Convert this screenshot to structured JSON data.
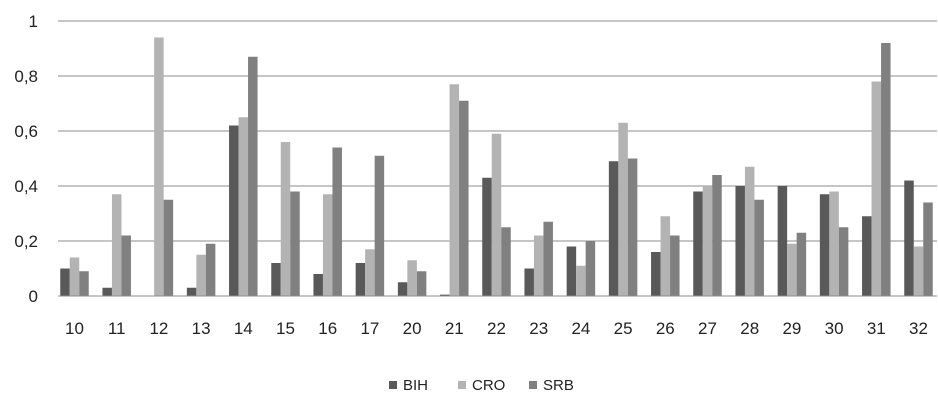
{
  "chart_data": {
    "type": "bar",
    "categories": [
      "10",
      "11",
      "12",
      "13",
      "14",
      "15",
      "16",
      "17",
      "20",
      "21",
      "22",
      "23",
      "24",
      "25",
      "26",
      "27",
      "28",
      "29",
      "30",
      "31",
      "32"
    ],
    "series": [
      {
        "name": "BIH",
        "color": "#595959",
        "values": [
          0.1,
          0.03,
          0.0,
          0.03,
          0.62,
          0.12,
          0.08,
          0.12,
          0.05,
          0.005,
          0.43,
          0.1,
          0.18,
          0.49,
          0.16,
          0.38,
          0.4,
          0.4,
          0.37,
          0.29,
          0.42
        ]
      },
      {
        "name": "CRO",
        "color": "#b3b3b3",
        "values": [
          0.14,
          0.37,
          0.94,
          0.15,
          0.65,
          0.56,
          0.37,
          0.17,
          0.13,
          0.77,
          0.59,
          0.22,
          0.11,
          0.63,
          0.29,
          0.4,
          0.47,
          0.19,
          0.38,
          0.78,
          0.18
        ]
      },
      {
        "name": "SRB",
        "color": "#808080",
        "values": [
          0.09,
          0.22,
          0.35,
          0.19,
          0.87,
          0.38,
          0.54,
          0.51,
          0.09,
          0.71,
          0.25,
          0.27,
          0.2,
          0.5,
          0.22,
          0.44,
          0.35,
          0.23,
          0.25,
          0.92,
          0.34
        ]
      }
    ],
    "y_ticks": [
      "0",
      "0,2",
      "0,4",
      "0,6",
      "0,8",
      "1"
    ],
    "ylim": [
      0,
      1
    ],
    "grid": true,
    "legend_position": "bottom"
  }
}
